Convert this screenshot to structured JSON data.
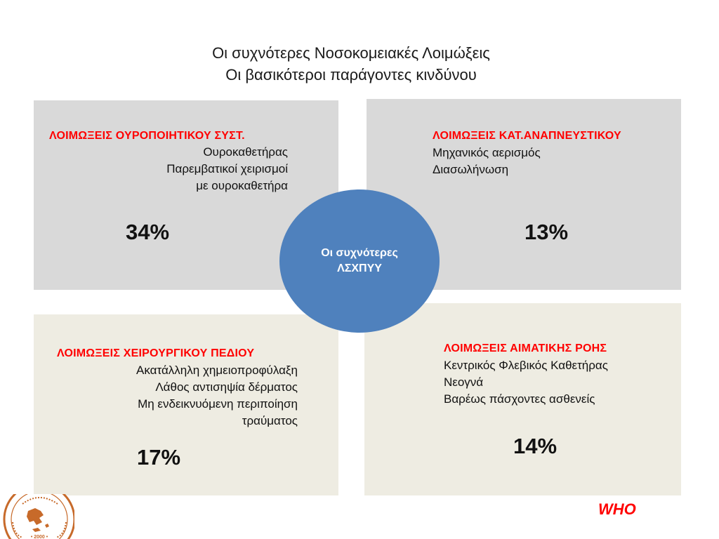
{
  "title": {
    "line1": "Οι συχνότερες Νοσοκομειακές Λοιμώξεις",
    "line2": "Οι βασικότεροι παράγοντες κινδύνου"
  },
  "center": {
    "line1": "Οι συχνότερες",
    "line2": "ΛΣΧΠΥΥ"
  },
  "quadrants": {
    "urinary": {
      "heading": "ΛΟΙΜΩΞΕΙΣ ΟΥΡΟΠΟΙΗΤΙΚΟΥ ΣΥΣΤ.",
      "factors": [
        "Ουροκαθετήρας",
        "Παρεμβατικοί χειρισμοί",
        "με ουροκαθετήρα"
      ],
      "percent": "34%"
    },
    "respiratory": {
      "heading": "ΛΟΙΜΩΞΕΙΣ ΚΑΤ.ΑΝΑΠΝΕΥΣΤΙΚΟΥ",
      "factors": [
        "Μηχανικός αερισμός",
        "Διασωλήνωση"
      ],
      "percent": "13%"
    },
    "surgical": {
      "heading": "ΛΟΙΜΩΞΕΙΣ ΧΕΙΡΟΥΡΓΙΚΟΥ ΠΕΔΙΟΥ",
      "factors": [
        "Ακατάλληλη χημειοπροφύλαξη",
        "Λάθος αντισηψία δέρματος",
        "Μη ενδεικνυόμενη περιποίηση",
        "τραύματος"
      ],
      "percent": "17%"
    },
    "bloodstream": {
      "heading": "ΛΟΙΜΩΞΕΙΣ ΑΙΜΑΤΙΚΗΣ ΡΟΗΣ",
      "factors": [
        "Κεντρικός Φλεβικός Καθετήρας",
        "Νεογνά",
        "Βαρέως πάσχοντες ασθενείς"
      ],
      "percent": "14%"
    }
  },
  "source": "WHO",
  "colors": {
    "heading_red": "#ff0000",
    "circle_blue": "#4f81bd",
    "top_box_gray": "#d9d9d9",
    "bottom_box_beige": "#eeece2"
  },
  "logo": {
    "icon": "greek-map-seal-icon",
    "ring_text": "ΕΛΛΗΝΙΚΗ ΕΤΑΙΡΕΙΑ ΕΛΕΓΧΟΥ ΛΟΙΜΩΞΕΩΝ",
    "year": "2000"
  }
}
